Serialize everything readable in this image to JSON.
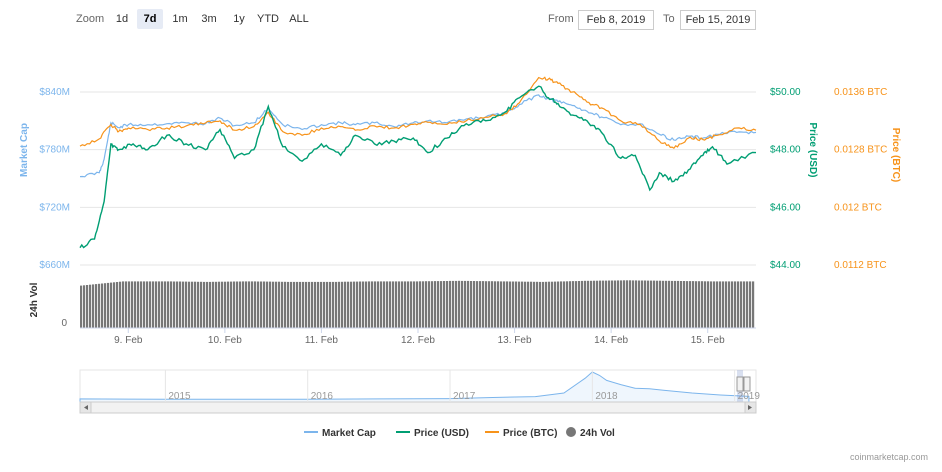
{
  "toolbar": {
    "zoom_label": "Zoom",
    "zoom_buttons": [
      "1d",
      "7d",
      "1m",
      "3m",
      "1y",
      "YTD",
      "ALL"
    ],
    "active_zoom": "7d",
    "from_label": "From",
    "from_value": "Feb 8, 2019",
    "to_label": "To",
    "to_value": "Feb 15, 2019"
  },
  "colors": {
    "market_cap": "#7cb5ec",
    "price_usd": "#009e73",
    "price_btc": "#f7931a",
    "volume": "#777777",
    "grid": "#e6e6e6"
  },
  "watermark": "coinmarketcap.com",
  "chart_data": {
    "type": "line",
    "x_range": [
      "8 Feb 2019 13:00",
      "15 Feb 2019 13:00"
    ],
    "x_ticks": [
      "9. Feb",
      "10. Feb",
      "11. Feb",
      "12. Feb",
      "13. Feb",
      "14. Feb",
      "15. Feb"
    ],
    "axes": {
      "market_cap": {
        "label": "Market Cap",
        "ticks": [
          "$660M",
          "$720M",
          "$780M",
          "$840M"
        ],
        "range": [
          660,
          840
        ],
        "unit": "$M"
      },
      "price_usd": {
        "label": "Price (USD)",
        "ticks": [
          "$44.00",
          "$46.00",
          "$48.00",
          "$50.00"
        ],
        "range": [
          44,
          50
        ]
      },
      "price_btc": {
        "label": "Price (BTC)",
        "ticks": [
          "0.0112 BTC",
          "0.012 BTC",
          "0.0128 BTC",
          "0.0136 BTC"
        ],
        "range": [
          0.0112,
          0.0136
        ]
      },
      "volume": {
        "label": "24h Vol",
        "ticks": [
          "0"
        ]
      }
    },
    "series": [
      {
        "name": "Market Cap",
        "x_days": [
          0,
          0.2,
          0.25,
          0.32,
          0.4,
          0.5,
          0.7,
          0.9,
          1.1,
          1.3,
          1.45,
          1.6,
          1.8,
          1.95,
          2.1,
          2.3,
          2.5,
          2.7,
          2.85,
          3.05,
          3.25,
          3.45,
          3.6,
          3.8,
          4.0,
          4.2,
          4.4,
          4.55,
          4.75,
          4.85,
          4.95,
          5.1,
          5.25,
          5.4,
          5.6,
          5.8,
          6.0,
          6.15,
          6.3,
          6.45,
          6.6,
          6.8,
          7.0
        ],
        "values": [
          752,
          756,
          770,
          808,
          803,
          806,
          806,
          807,
          808,
          807,
          813,
          805,
          808,
          823,
          806,
          801,
          806,
          808,
          806,
          808,
          804,
          808,
          810,
          808,
          812,
          814,
          818,
          827,
          837,
          833,
          830,
          826,
          820,
          814,
          806,
          807,
          796,
          790,
          794,
          792,
          796,
          798,
          798
        ]
      },
      {
        "name": "Price (USD)",
        "x_days": [
          0,
          0.15,
          0.25,
          0.32,
          0.4,
          0.55,
          0.7,
          0.9,
          1.1,
          1.3,
          1.45,
          1.6,
          1.8,
          1.95,
          2.1,
          2.3,
          2.5,
          2.7,
          2.85,
          3.05,
          3.25,
          3.45,
          3.6,
          3.8,
          4.0,
          4.2,
          4.4,
          4.55,
          4.75,
          4.85,
          4.95,
          5.1,
          5.25,
          5.4,
          5.6,
          5.75,
          5.9,
          6.0,
          6.15,
          6.3,
          6.45,
          6.55,
          6.7,
          7.0
        ],
        "values": [
          44.6,
          44.9,
          46.2,
          48.2,
          48.0,
          48.2,
          48.0,
          48.5,
          48.2,
          48.0,
          48.7,
          47.7,
          48.0,
          49.5,
          48.1,
          47.6,
          48.2,
          47.8,
          48.5,
          48.2,
          48.3,
          48.4,
          47.9,
          48.4,
          48.9,
          49.0,
          49.3,
          49.8,
          50.2,
          49.8,
          49.6,
          49.2,
          49.0,
          48.6,
          47.7,
          47.8,
          46.6,
          47.2,
          46.9,
          47.3,
          47.8,
          48.1,
          47.5,
          47.9
        ]
      },
      {
        "name": "Price (BTC)",
        "x_days": [
          0,
          0.2,
          0.32,
          0.4,
          0.5,
          0.7,
          0.9,
          1.1,
          1.3,
          1.45,
          1.6,
          1.8,
          1.95,
          2.1,
          2.3,
          2.5,
          2.7,
          2.85,
          3.05,
          3.25,
          3.45,
          3.6,
          3.8,
          4.0,
          4.2,
          4.4,
          4.55,
          4.75,
          4.85,
          4.95,
          5.1,
          5.25,
          5.4,
          5.6,
          5.8,
          6.0,
          6.15,
          6.3,
          6.45,
          6.6,
          6.8,
          7.0
        ],
        "values": [
          0.01285,
          0.01295,
          0.01315,
          0.01305,
          0.0131,
          0.01308,
          0.0131,
          0.01313,
          0.01317,
          0.0132,
          0.01307,
          0.01312,
          0.01332,
          0.01305,
          0.013,
          0.0131,
          0.01312,
          0.01307,
          0.01313,
          0.0131,
          0.01315,
          0.01318,
          0.01315,
          0.0132,
          0.01325,
          0.0133,
          0.01345,
          0.0138,
          0.01378,
          0.01372,
          0.0136,
          0.01346,
          0.01338,
          0.0132,
          0.01315,
          0.01292,
          0.01282,
          0.01296,
          0.01294,
          0.013,
          0.0131,
          0.01307
        ]
      },
      {
        "name": "24h Vol",
        "values_relative": [
          0.8,
          0.88,
          0.88,
          0.87,
          0.88,
          0.87,
          0.87,
          0.88,
          0.88,
          0.89,
          0.88,
          0.87,
          0.89,
          0.9,
          0.89,
          0.88,
          0.88
        ]
      }
    ],
    "legend": {
      "placement": "bottom-center",
      "entries": [
        "Market Cap",
        "Price (USD)",
        "Price (BTC)",
        "24h Vol"
      ]
    },
    "navigator": {
      "year_labels": [
        "2015",
        "2016",
        "2017",
        "2018",
        "2019"
      ],
      "x_years": [
        2014.4,
        2015.0,
        2015.5,
        2016.0,
        2016.5,
        2017.0,
        2017.3,
        2017.6,
        2017.8,
        2017.95,
        2018.0,
        2018.05,
        2018.1,
        2018.2,
        2018.3,
        2018.4,
        2018.5,
        2018.7,
        2018.9,
        2019.1
      ],
      "values_relative": [
        0.04,
        0.03,
        0.03,
        0.03,
        0.04,
        0.05,
        0.09,
        0.12,
        0.25,
        0.78,
        1.0,
        0.88,
        0.7,
        0.55,
        0.42,
        0.4,
        0.35,
        0.25,
        0.18,
        0.13
      ]
    },
    "grid": true
  }
}
